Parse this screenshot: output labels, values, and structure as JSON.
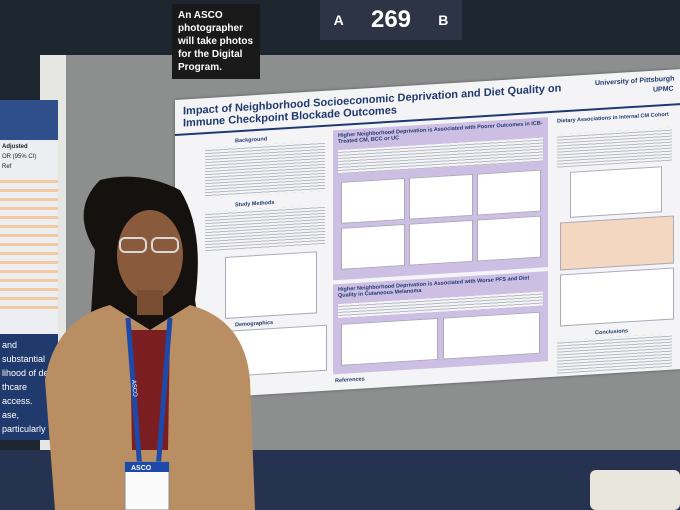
{
  "signage": {
    "photo_notice": "An ASCO photographer will take photos for the Digital Program.",
    "booth_left": "A",
    "booth_number": "269",
    "booth_right": "B"
  },
  "poster": {
    "title": "Impact of Neighborhood Socioeconomic Deprivation and Diet Quality on Immune Checkpoint Blockade Outcomes",
    "institution": "University of Pittsburgh",
    "partner": "UPMC",
    "sections": [
      "Background",
      "Study Methods",
      "Demographics",
      "Higher Neighborhood Deprivation is Associated with Poorer Outcomes in ICB-Treated CM, BCC or UC",
      "Higher Neighborhood Deprivation is Associated with Worse PFS and Diet Quality in Cutaneous Melanoma",
      "Dietary Associations in Internal CM Cohort",
      "Conclusions",
      "References"
    ]
  },
  "left_poster": {
    "table_header": "Adjusted",
    "column_label": "OR (95% CI)",
    "reference": "Ref",
    "text_lines": [
      "and substantial",
      "lihood of dela",
      "thcare access.",
      "ase, particularly"
    ]
  },
  "badge": {
    "lanyard": "ASCO",
    "card": "ASCO"
  }
}
